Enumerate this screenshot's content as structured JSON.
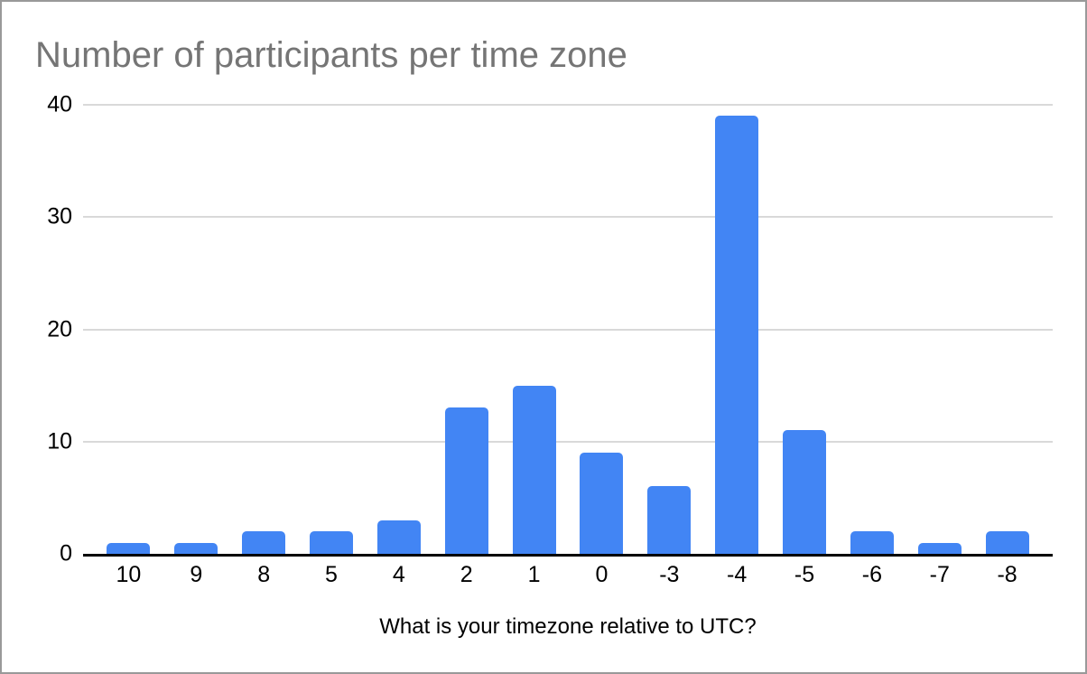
{
  "window": {
    "background_color": "#ffffff",
    "border_color": "#999999"
  },
  "chart_data": {
    "type": "bar",
    "title": "Number of participants per time zone",
    "title_color": "#757575",
    "xlabel": "What is your timezone relative to UTC?",
    "ylabel": "",
    "categories": [
      "10",
      "9",
      "8",
      "5",
      "4",
      "2",
      "1",
      "0",
      "-3",
      "-4",
      "-5",
      "-6",
      "-7",
      "-8"
    ],
    "values": [
      1,
      1,
      2,
      2,
      3,
      13,
      15,
      9,
      6,
      39,
      11,
      2,
      1,
      2
    ],
    "ylim": [
      0,
      40
    ],
    "yticks": [
      0,
      10,
      20,
      30,
      40
    ],
    "bar_color": "#4285f4",
    "gridline_color": "#d9d9d9",
    "axis_line_color": "#000000",
    "grid": true,
    "legend_position": "none"
  }
}
